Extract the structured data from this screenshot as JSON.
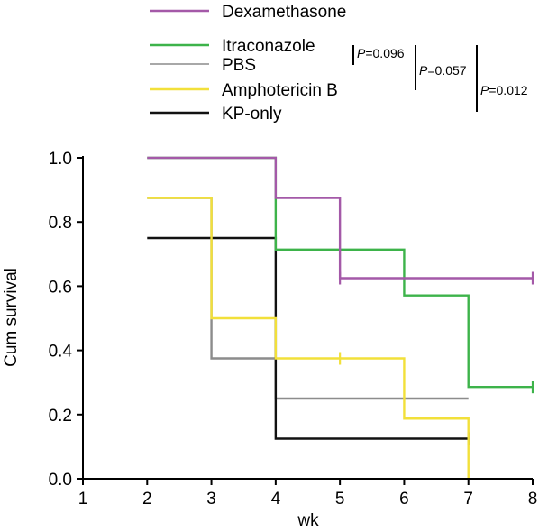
{
  "chart_data": {
    "type": "line",
    "subtype": "kaplan-meier step curve",
    "title": "",
    "xlabel": "wk",
    "ylabel": "Cum survival",
    "xlim": [
      1,
      8
    ],
    "ylim": [
      0.0,
      1.0
    ],
    "x_ticks": [
      "1",
      "2",
      "3",
      "4",
      "5",
      "6",
      "7",
      "8"
    ],
    "y_ticks": [
      "0.0",
      "0.2",
      "0.4",
      "0.6",
      "0.8",
      "1.0"
    ],
    "grid": false,
    "legend_position": "top-left, above plot",
    "series": [
      {
        "name": "Dexamethasone",
        "color": "#a459a8",
        "steps": [
          [
            2,
            1.0
          ],
          [
            4,
            0.875
          ],
          [
            5,
            0.625
          ],
          [
            8,
            0.625
          ]
        ],
        "censored": [
          [
            5,
            0.625
          ],
          [
            8,
            0.625
          ]
        ]
      },
      {
        "name": "Itraconazole",
        "color": "#3db34a",
        "steps": [
          [
            2,
            1.0
          ],
          [
            4,
            0.714
          ],
          [
            6,
            0.571
          ],
          [
            7,
            0.286
          ],
          [
            8,
            0.286
          ]
        ],
        "censored": [
          [
            8,
            0.286
          ]
        ]
      },
      {
        "name": "PBS",
        "color": "#8c8c8c",
        "steps": [
          [
            2,
            0.875
          ],
          [
            3,
            0.375
          ],
          [
            4,
            0.25
          ],
          [
            7,
            0.25
          ]
        ],
        "censored": []
      },
      {
        "name": "Amphotericin B",
        "color": "#f2e03a",
        "steps": [
          [
            2,
            0.875
          ],
          [
            3,
            0.5
          ],
          [
            4,
            0.375
          ],
          [
            6,
            0.1875
          ],
          [
            7,
            0.0
          ]
        ],
        "censored": [
          [
            5,
            0.375
          ]
        ]
      },
      {
        "name": "KP-only",
        "color": "#111111",
        "steps": [
          [
            2,
            0.75
          ],
          [
            3,
            0.75
          ],
          [
            4,
            0.125
          ],
          [
            7,
            0.125
          ]
        ],
        "censored": [
          [
            7,
            0.125
          ]
        ]
      }
    ],
    "legend_order": [
      "Dexamethasone",
      "Itraconazole",
      "PBS",
      "Amphotericin B",
      "KP-only"
    ],
    "annotations": [
      {
        "prefix": "P",
        "value": "=0.096"
      },
      {
        "prefix": "P",
        "value": "=0.057"
      },
      {
        "prefix": "P",
        "value": "=0.012"
      }
    ]
  }
}
